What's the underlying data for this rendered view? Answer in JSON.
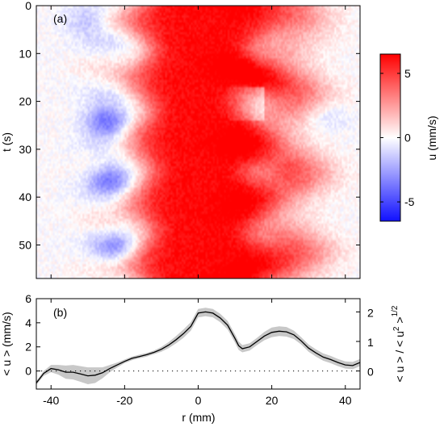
{
  "colors": {
    "negative": "#1010ff",
    "zero": "#ffffff",
    "positive": "#ff0000",
    "mean_line": "#000000",
    "band": "#c8c8c8",
    "frame": "#000000"
  },
  "chart_data": [
    {
      "panel": "(a)",
      "type": "heatmap",
      "xlabel": "r (mm)",
      "ylabel": "t (s)",
      "colorbar_label": "u (mm/s)",
      "colorbar_ticks": [
        5,
        0,
        -5
      ],
      "clim": [
        -6.5,
        6.5
      ],
      "xlim": [
        -44,
        44
      ],
      "ylim": [
        0,
        57
      ],
      "y_inverted": true,
      "xticks": [
        -40,
        -20,
        0,
        20,
        40
      ],
      "yticks": [
        0,
        10,
        20,
        30,
        40,
        50
      ],
      "structure": {
        "central_band": {
          "r_center": 0,
          "r_halfwidth": 17,
          "peak_u": 6.3
        },
        "side_band": {
          "r_center": 22,
          "r_halfwidth": 11,
          "peak_u": 4.5
        },
        "neg_patches": [
          {
            "r": -25,
            "t": 24,
            "u": -4.5
          },
          {
            "r": -24,
            "t": 36,
            "u": -3.8
          },
          {
            "r": -30,
            "t": 3,
            "u": -2.0
          },
          {
            "r": -22,
            "t": 51,
            "u": -2.5
          },
          {
            "r": 13,
            "t": 19,
            "u": -1.5
          },
          {
            "r": 35,
            "t": 23,
            "u": -1.2
          }
        ]
      }
    },
    {
      "panel": "(b)",
      "type": "line",
      "xlabel": "r (mm)",
      "ylabel": "< u > (mm/s)",
      "ylabel_right": "< u > / < u² >^1/2",
      "ylabel_right_parts": {
        "lead": "< u > / < u",
        "exp2": "2",
        "mid": " >",
        "exp_half": "1/2"
      },
      "xlim": [
        -44,
        44
      ],
      "ylim": [
        -1.5,
        6
      ],
      "xticks": [
        -40,
        -20,
        0,
        20,
        40
      ],
      "yticks": [
        0,
        2,
        4,
        6
      ],
      "yticks_right": [
        0,
        1,
        2
      ],
      "right_scale": 2.45,
      "zero_line": "dotted",
      "series": [
        {
          "x": [
            -44,
            -42,
            -40,
            -38,
            -36,
            -34,
            -32,
            -30,
            -28,
            -26,
            -24,
            -22,
            -20,
            -18,
            -16,
            -14,
            -12,
            -10,
            -8,
            -6,
            -4,
            -2,
            0,
            2,
            4,
            6,
            8,
            10,
            11,
            12,
            14,
            16,
            18,
            20,
            22,
            24,
            26,
            28,
            30,
            32,
            34,
            36,
            38,
            40,
            42,
            44
          ],
          "y": [
            -1.0,
            -0.2,
            0.2,
            0.1,
            -0.1,
            -0.1,
            -0.25,
            -0.4,
            -0.35,
            -0.15,
            0.2,
            0.5,
            0.8,
            1.05,
            1.2,
            1.35,
            1.55,
            1.8,
            2.15,
            2.6,
            3.1,
            3.7,
            4.8,
            4.9,
            4.8,
            4.4,
            3.8,
            2.7,
            2.1,
            1.85,
            2.0,
            2.45,
            2.9,
            3.2,
            3.3,
            3.25,
            3.0,
            2.5,
            1.9,
            1.5,
            1.15,
            0.95,
            0.7,
            0.5,
            0.45,
            0.7
          ],
          "band_halfwidth": [
            0.15,
            0.2,
            0.3,
            0.4,
            0.55,
            0.6,
            0.65,
            0.7,
            0.65,
            0.45,
            0.3,
            0.2,
            0.15,
            0.15,
            0.15,
            0.15,
            0.15,
            0.2,
            0.25,
            0.3,
            0.35,
            0.35,
            0.35,
            0.35,
            0.35,
            0.35,
            0.35,
            0.35,
            0.35,
            0.3,
            0.3,
            0.3,
            0.35,
            0.4,
            0.4,
            0.4,
            0.35,
            0.3,
            0.3,
            0.3,
            0.3,
            0.3,
            0.3,
            0.3,
            0.3,
            0.3
          ]
        }
      ]
    }
  ]
}
